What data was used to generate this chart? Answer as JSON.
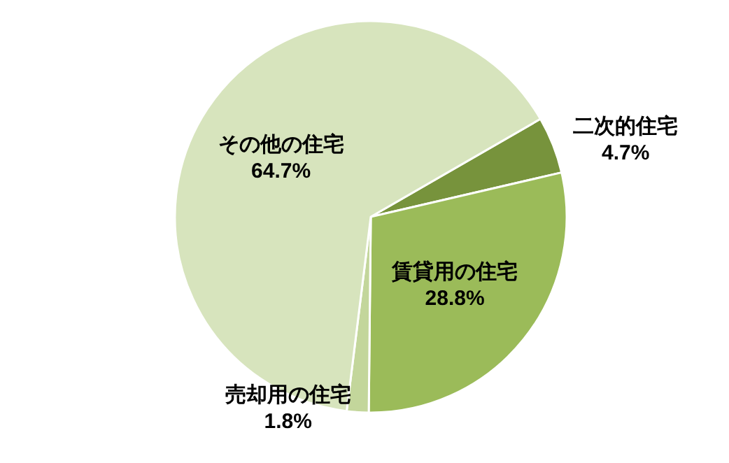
{
  "chart_data": {
    "type": "pie",
    "categories": [
      "二次的住宅",
      "賃貸用の住宅",
      "売却用の住宅",
      "その他の住宅"
    ],
    "values": [
      4.7,
      28.8,
      1.8,
      64.7
    ],
    "value_labels": [
      "4.7%",
      "28.8%",
      "1.8%",
      "64.7%"
    ],
    "colors": [
      "#77933c",
      "#9bbb59",
      "#c3d69b",
      "#d7e4bd"
    ]
  }
}
